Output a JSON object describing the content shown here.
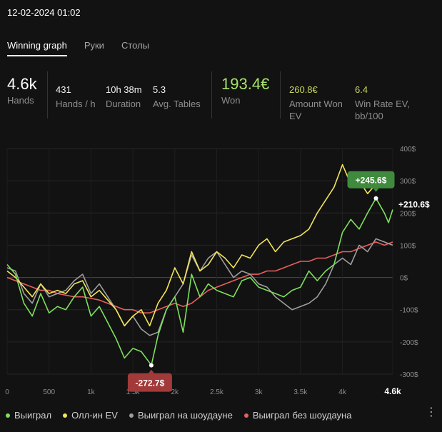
{
  "header": {
    "datetime": "12-02-2024 01:02"
  },
  "tabs": [
    {
      "label": "Winning graph",
      "active": true
    },
    {
      "label": "Руки",
      "active": false
    },
    {
      "label": "Столы",
      "active": false
    }
  ],
  "stats": {
    "hands": {
      "value": "4.6k",
      "label": "Hands"
    },
    "hands_per_hour": {
      "value": "431",
      "label": "Hands / h"
    },
    "duration": {
      "value": "10h 38m",
      "label": "Duration"
    },
    "avg_tables": {
      "value": "5.3",
      "label": "Avg. Tables"
    },
    "won": {
      "value": "193.4€",
      "label": "Won"
    },
    "amount_won_ev": {
      "value": "260.8€",
      "label_line1": "Amount Won",
      "label_line2": "EV"
    },
    "win_rate_ev": {
      "value": "6.4",
      "label_line1": "Win Rate EV,",
      "label_line2": "bb/100"
    }
  },
  "colors": {
    "won": "#7ee05d",
    "allin_ev": "#f3e45b",
    "showdown": "#9e9e9e",
    "non_showdown": "#ea5e5e",
    "max_badge": "#3f8a3c",
    "min_badge": "#a33a3a"
  },
  "chart_data": {
    "type": "line",
    "x_ticks": [
      "0",
      "500",
      "1k",
      "1.5k",
      "2k",
      "2.5k",
      "3k",
      "3.5k",
      "4k",
      "4.6k"
    ],
    "x_tick_values": [
      0,
      500,
      1000,
      1500,
      2000,
      2500,
      3000,
      3500,
      4000,
      4600
    ],
    "y_ticks": [
      "400$",
      "300$",
      "200$",
      "100$",
      "0$",
      "-100$",
      "-200$",
      "-300$"
    ],
    "y_tick_values": [
      400,
      300,
      200,
      100,
      0,
      -100,
      -200,
      -300
    ],
    "xlim": [
      0,
      4600
    ],
    "ylim": [
      -300,
      400
    ],
    "grid": true,
    "legend_position": "bottom-left",
    "annotations": {
      "max_label": "+245.6$",
      "max_point": [
        4400,
        245.6
      ],
      "min_label": "-272.7$",
      "min_point": [
        1720,
        -272.7
      ],
      "end_label": "+210.6$",
      "end_value": 210.6
    },
    "series": [
      {
        "name": "Выиграл",
        "color": "#7ee05d",
        "x": [
          0,
          100,
          200,
          300,
          400,
          500,
          600,
          700,
          800,
          900,
          1000,
          1100,
          1200,
          1300,
          1400,
          1500,
          1600,
          1700,
          1720,
          1800,
          1900,
          2000,
          2100,
          2200,
          2300,
          2400,
          2500,
          2600,
          2700,
          2800,
          2900,
          3000,
          3100,
          3200,
          3300,
          3400,
          3500,
          3600,
          3700,
          3800,
          3900,
          4000,
          4100,
          4200,
          4300,
          4400,
          4500,
          4550,
          4600
        ],
        "y": [
          40,
          10,
          -80,
          -120,
          -50,
          -110,
          -90,
          -100,
          -60,
          -30,
          -120,
          -90,
          -140,
          -190,
          -250,
          -220,
          -230,
          -265,
          -272.7,
          -180,
          -100,
          -60,
          -170,
          10,
          -60,
          -20,
          -40,
          -50,
          -60,
          -10,
          0,
          -30,
          -40,
          -50,
          -60,
          -40,
          -30,
          20,
          -10,
          20,
          40,
          140,
          180,
          150,
          200,
          245.6,
          200,
          170,
          210.6
        ]
      },
      {
        "name": "Олл-ин EV",
        "color": "#f3e45b",
        "x": [
          0,
          100,
          200,
          300,
          400,
          500,
          600,
          700,
          800,
          900,
          1000,
          1100,
          1200,
          1300,
          1400,
          1500,
          1600,
          1700,
          1800,
          1900,
          2000,
          2100,
          2200,
          2300,
          2400,
          2500,
          2600,
          2700,
          2800,
          2900,
          3000,
          3100,
          3200,
          3300,
          3400,
          3500,
          3600,
          3700,
          3800,
          3900,
          4000,
          4100,
          4200,
          4300,
          4400,
          4500,
          4600
        ],
        "y": [
          20,
          0,
          -30,
          -60,
          -20,
          -50,
          -40,
          -50,
          -20,
          -10,
          -60,
          -40,
          -70,
          -100,
          -150,
          -120,
          -100,
          -150,
          -80,
          -40,
          30,
          -20,
          80,
          20,
          40,
          80,
          60,
          30,
          70,
          60,
          100,
          120,
          80,
          110,
          120,
          130,
          150,
          200,
          240,
          280,
          350,
          290,
          300,
          260,
          290,
          310,
          280
        ]
      },
      {
        "name": "Выиграл на шоудауне",
        "color": "#9e9e9e",
        "x": [
          0,
          100,
          200,
          300,
          400,
          500,
          600,
          700,
          800,
          900,
          1000,
          1100,
          1200,
          1300,
          1400,
          1500,
          1600,
          1700,
          1800,
          1900,
          2000,
          2100,
          2200,
          2300,
          2400,
          2500,
          2600,
          2700,
          2800,
          2900,
          3000,
          3100,
          3200,
          3300,
          3400,
          3500,
          3600,
          3700,
          3800,
          3900,
          4000,
          4100,
          4200,
          4300,
          4400,
          4500,
          4600
        ],
        "y": [
          30,
          20,
          -50,
          -80,
          -20,
          -60,
          -50,
          -40,
          -10,
          10,
          -50,
          -20,
          -60,
          -100,
          -150,
          -120,
          -160,
          -180,
          -170,
          -100,
          -60,
          -20,
          70,
          20,
          60,
          80,
          40,
          0,
          20,
          10,
          -20,
          -30,
          -60,
          -80,
          -100,
          -90,
          -80,
          -60,
          -20,
          40,
          60,
          40,
          100,
          80,
          120,
          110,
          100
        ]
      },
      {
        "name": "Выиграл без шоудауна",
        "color": "#ea5e5e",
        "x": [
          0,
          100,
          200,
          300,
          400,
          500,
          600,
          700,
          800,
          900,
          1000,
          1100,
          1200,
          1300,
          1400,
          1500,
          1600,
          1700,
          1800,
          1900,
          2000,
          2100,
          2200,
          2300,
          2400,
          2500,
          2600,
          2700,
          2800,
          2900,
          3000,
          3100,
          3200,
          3300,
          3400,
          3500,
          3600,
          3700,
          3800,
          3900,
          4000,
          4100,
          4200,
          4300,
          4400,
          4500,
          4600
        ],
        "y": [
          0,
          -10,
          -20,
          -30,
          -40,
          -40,
          -50,
          -55,
          -60,
          -60,
          -65,
          -70,
          -80,
          -90,
          -100,
          -100,
          -110,
          -110,
          -100,
          -90,
          -80,
          -90,
          -80,
          -60,
          -40,
          -30,
          -20,
          -10,
          0,
          10,
          10,
          20,
          20,
          30,
          40,
          50,
          50,
          60,
          60,
          70,
          80,
          80,
          90,
          100,
          110,
          100,
          110
        ]
      }
    ]
  },
  "more_icon": "more-vertical-icon"
}
